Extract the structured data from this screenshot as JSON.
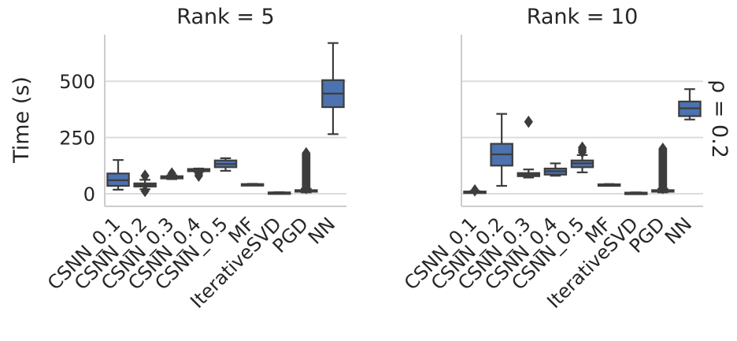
{
  "chart_data": {
    "type": "box",
    "ylabel": "Time (s)",
    "row_label": "ρ = 0.2",
    "ylim": [
      -30,
      700
    ],
    "yticks": [
      0,
      250,
      500
    ],
    "grid": "horizontal",
    "box_color": "#4c72b0",
    "categories": [
      "CSNN_0.1",
      "CSNN_0.2",
      "CSNN_0.3",
      "CSNN_0.4",
      "CSNN_0.5",
      "MF",
      "IterativeSVD",
      "PGD",
      "NN"
    ],
    "panels": [
      {
        "title": "Rank = 5",
        "boxes": [
          {
            "category": "CSNN_0.1",
            "q1": 35,
            "median": 60,
            "q3": 90,
            "whislo": 18,
            "whishi": 150,
            "fliers": []
          },
          {
            "category": "CSNN_0.2",
            "q1": 32,
            "median": 38,
            "q3": 46,
            "whislo": 20,
            "whishi": 62,
            "fliers": [
              80,
              12
            ]
          },
          {
            "category": "CSNN_0.3",
            "q1": 68,
            "median": 72,
            "q3": 78,
            "whislo": 65,
            "whishi": 82,
            "fliers": [
              90
            ]
          },
          {
            "category": "CSNN_0.4",
            "q1": 100,
            "median": 106,
            "q3": 110,
            "whislo": 98,
            "whishi": 112,
            "fliers": [
              90,
              80
            ]
          },
          {
            "category": "CSNN_0.5",
            "q1": 118,
            "median": 132,
            "q3": 148,
            "whislo": 102,
            "whishi": 158,
            "fliers": []
          },
          {
            "category": "MF",
            "q1": 40,
            "median": 41,
            "q3": 43,
            "whislo": 39,
            "whishi": 44,
            "fliers": []
          },
          {
            "category": "IterativeSVD",
            "q1": 4,
            "median": 5,
            "q3": 6,
            "whislo": 3,
            "whishi": 7,
            "fliers": []
          },
          {
            "category": "PGD",
            "q1": 10,
            "median": 12,
            "q3": 16,
            "whislo": 6,
            "whishi": 22,
            "fliers": [
              25,
              30,
              35,
              40,
              45,
              50,
              55,
              60,
              65,
              70,
              75,
              80,
              85,
              90,
              95,
              100,
              105,
              110,
              115,
              120,
              125,
              130,
              135,
              140,
              145,
              150,
              155,
              160,
              165,
              170,
              175,
              180
            ]
          },
          {
            "category": "NN",
            "q1": 385,
            "median": 445,
            "q3": 505,
            "whislo": 265,
            "whishi": 670,
            "fliers": []
          }
        ]
      },
      {
        "title": "Rank = 10",
        "boxes": [
          {
            "category": "CSNN_0.1",
            "q1": 6,
            "median": 8,
            "q3": 10,
            "whislo": 4,
            "whishi": 12,
            "fliers": [
              15
            ]
          },
          {
            "category": "CSNN_0.2",
            "q1": 125,
            "median": 175,
            "q3": 222,
            "whislo": 35,
            "whishi": 355,
            "fliers": []
          },
          {
            "category": "CSNN_0.3",
            "q1": 78,
            "median": 85,
            "q3": 92,
            "whislo": 72,
            "whishi": 108,
            "fliers": [
              320
            ]
          },
          {
            "category": "CSNN_0.4",
            "q1": 85,
            "median": 100,
            "q3": 112,
            "whislo": 80,
            "whishi": 135,
            "fliers": []
          },
          {
            "category": "CSNN_0.5",
            "q1": 118,
            "median": 135,
            "q3": 148,
            "whislo": 95,
            "whishi": 172,
            "fliers": [
              185,
              195,
              205
            ]
          },
          {
            "category": "MF",
            "q1": 38,
            "median": 40,
            "q3": 42,
            "whislo": 37,
            "whishi": 43,
            "fliers": []
          },
          {
            "category": "IterativeSVD",
            "q1": 3,
            "median": 4,
            "q3": 5,
            "whislo": 2,
            "whishi": 6,
            "fliers": []
          },
          {
            "category": "PGD",
            "q1": 10,
            "median": 12,
            "q3": 16,
            "whislo": 6,
            "whishi": 22,
            "fliers": [
              25,
              30,
              35,
              40,
              45,
              50,
              55,
              60,
              65,
              70,
              75,
              80,
              85,
              90,
              95,
              100,
              105,
              110,
              115,
              120,
              125,
              130,
              135,
              140,
              145,
              150,
              155,
              160,
              165,
              170,
              175,
              180,
              185,
              190,
              195,
              200
            ]
          },
          {
            "category": "NN",
            "q1": 345,
            "median": 380,
            "q3": 410,
            "whislo": 330,
            "whishi": 465,
            "fliers": []
          }
        ]
      }
    ]
  }
}
